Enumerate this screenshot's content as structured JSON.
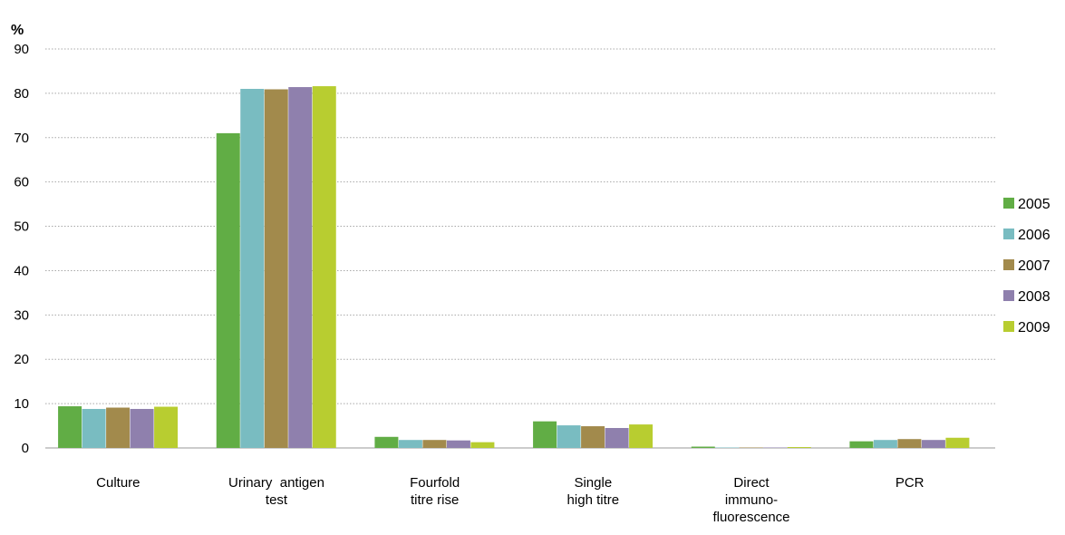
{
  "chart_data": {
    "type": "bar",
    "ylabel": "%",
    "ylim": [
      0,
      90
    ],
    "yticks": [
      "0",
      "10",
      "20",
      "30",
      "40",
      "50",
      "60",
      "70",
      "80",
      "90"
    ],
    "grid": true,
    "legend_position": "right",
    "categories": [
      [
        "Culture"
      ],
      [
        "Urinary  antigen",
        "test"
      ],
      [
        "Fourfold",
        "titre rise"
      ],
      [
        "Single",
        "high titre"
      ],
      [
        "Direct",
        "immuno-",
        "fluorescence"
      ],
      [
        "PCR"
      ]
    ],
    "series": [
      {
        "name": "2005",
        "color": "#61ad45",
        "values": [
          9.4,
          71.0,
          2.5,
          6.0,
          0.3,
          1.5
        ]
      },
      {
        "name": "2006",
        "color": "#79bcc1",
        "values": [
          8.8,
          81.0,
          1.8,
          5.1,
          0.1,
          1.8
        ]
      },
      {
        "name": "2007",
        "color": "#a28a4c",
        "values": [
          9.1,
          80.9,
          1.8,
          4.9,
          0.1,
          2.0
        ]
      },
      {
        "name": "2008",
        "color": "#8f80ad",
        "values": [
          8.8,
          81.4,
          1.7,
          4.5,
          0.1,
          1.8
        ]
      },
      {
        "name": "2009",
        "color": "#b8cd30",
        "values": [
          9.3,
          81.6,
          1.3,
          5.3,
          0.2,
          2.3
        ]
      }
    ]
  }
}
